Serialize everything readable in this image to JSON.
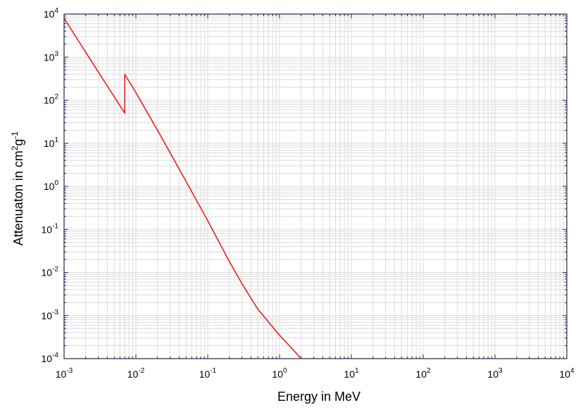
{
  "chart_data": {
    "type": "line",
    "title": "",
    "xlabel": "Energy in MeV",
    "ylabel": {
      "prefix": "Attenuaton in cm",
      "cm_exp": "2",
      "mid": "g",
      "g_exp": "-1"
    },
    "x_scale": "log",
    "y_scale": "log",
    "xlim": [
      0.001,
      10000
    ],
    "ylim": [
      0.0001,
      10000
    ],
    "grid": true,
    "x_ticks": [
      {
        "value": 0.001,
        "base": "10",
        "exp": "-3"
      },
      {
        "value": 0.01,
        "base": "10",
        "exp": "-2"
      },
      {
        "value": 0.1,
        "base": "10",
        "exp": "-1"
      },
      {
        "value": 1,
        "base": "10",
        "exp": "0"
      },
      {
        "value": 10,
        "base": "10",
        "exp": "1"
      },
      {
        "value": 100,
        "base": "10",
        "exp": "2"
      },
      {
        "value": 1000,
        "base": "10",
        "exp": "3"
      },
      {
        "value": 10000,
        "base": "10",
        "exp": "4"
      }
    ],
    "y_ticks": [
      {
        "value": 0.0001,
        "base": "10",
        "exp": "-4"
      },
      {
        "value": 0.001,
        "base": "10",
        "exp": "-3"
      },
      {
        "value": 0.01,
        "base": "10",
        "exp": "-2"
      },
      {
        "value": 0.1,
        "base": "10",
        "exp": "-1"
      },
      {
        "value": 1,
        "base": "10",
        "exp": "0"
      },
      {
        "value": 10,
        "base": "10",
        "exp": "1"
      },
      {
        "value": 100,
        "base": "10",
        "exp": "2"
      },
      {
        "value": 1000,
        "base": "10",
        "exp": "3"
      },
      {
        "value": 10000,
        "base": "10",
        "exp": "4"
      }
    ],
    "series": [
      {
        "color": "#e8211c",
        "x": [
          0.001,
          0.002,
          0.003,
          0.005,
          0.007,
          0.007,
          0.01,
          0.02,
          0.03,
          0.05,
          0.1,
          0.2,
          0.3,
          0.5,
          1.0,
          1.5,
          2.0
        ],
        "y": [
          8000,
          1300,
          450,
          120,
          50,
          400,
          150,
          20,
          6.0,
          1.3,
          0.16,
          0.018,
          0.0055,
          0.0014,
          0.00035,
          0.00017,
          0.0001
        ]
      }
    ]
  }
}
